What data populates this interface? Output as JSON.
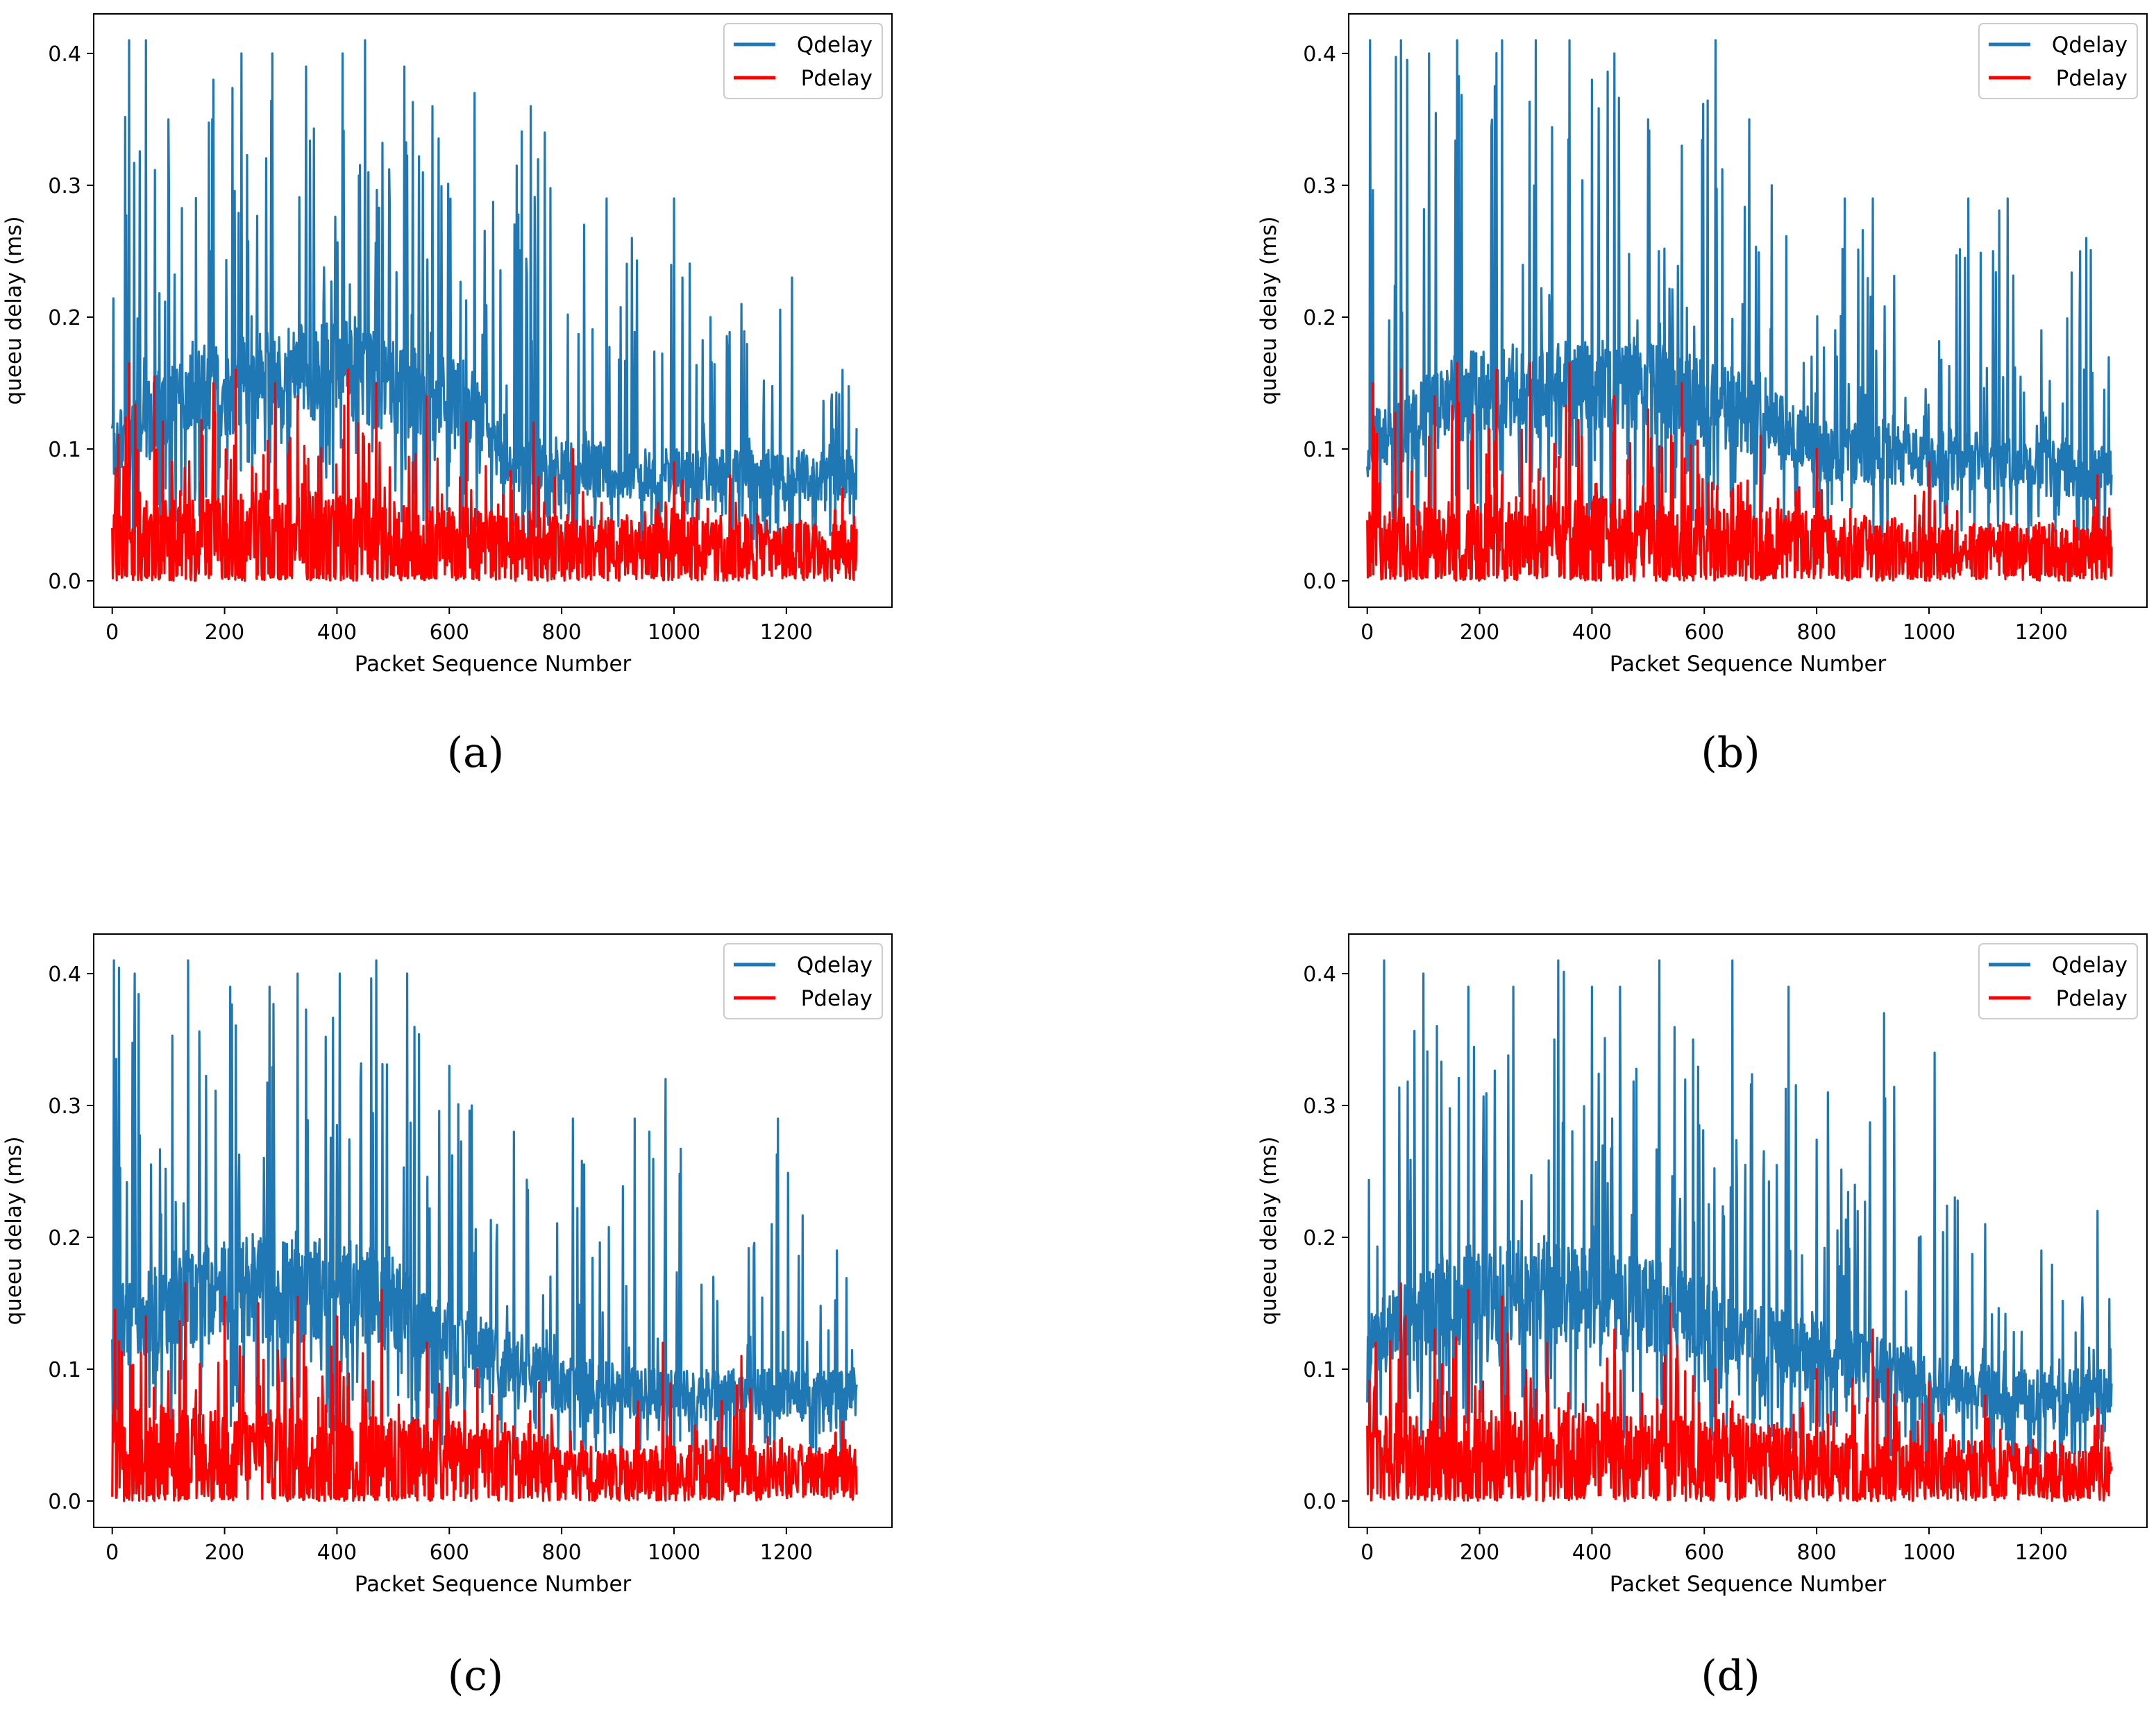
{
  "figure": {
    "series_names": [
      "Qdelay",
      "Pdelay"
    ],
    "colors": {
      "Qdelay": "#1f77b4",
      "Pdelay": "#ff0000",
      "axes": "#000000",
      "legend_border": "#cccccc"
    }
  },
  "chart_data": [
    {
      "type": "line",
      "caption": "(a)",
      "xlabel": "Packet Sequence Number",
      "ylabel": "queeu delay (ms)",
      "xlim": [
        -33,
        1388
      ],
      "ylim": [
        -0.02,
        0.43
      ],
      "xticks": [
        0,
        200,
        400,
        600,
        800,
        1000,
        1200
      ],
      "xtick_labels": [
        "0",
        "200",
        "400",
        "600",
        "800",
        "1000",
        "1200"
      ],
      "yticks": [
        0.0,
        0.1,
        0.2,
        0.3,
        0.4
      ],
      "ytick_labels": [
        "0.0",
        "0.1",
        "0.2",
        "0.3",
        "0.4"
      ],
      "legend": {
        "location": "top-right",
        "entries": [
          "Qdelay",
          "Pdelay"
        ]
      },
      "x_range": [
        0,
        1325
      ],
      "series": [
        {
          "name": "Qdelay",
          "color": "#1f77b4",
          "baseline": [
            [
              0,
              0.1
            ],
            [
              120,
              0.14
            ],
            [
              400,
              0.16
            ],
            [
              640,
              0.13
            ],
            [
              700,
              0.09
            ],
            [
              1000,
              0.08
            ],
            [
              1325,
              0.08
            ]
          ],
          "peaks": [
            [
              30,
              0.41
            ],
            [
              60,
              0.41
            ],
            [
              100,
              0.35
            ],
            [
              180,
              0.38
            ],
            [
              230,
              0.4
            ],
            [
              285,
              0.4
            ],
            [
              345,
              0.39
            ],
            [
              410,
              0.4
            ],
            [
              450,
              0.41
            ],
            [
              520,
              0.39
            ],
            [
              570,
              0.36
            ],
            [
              645,
              0.37
            ],
            [
              745,
              0.36
            ],
            [
              770,
              0.34
            ],
            [
              840,
              0.27
            ],
            [
              880,
              0.29
            ],
            [
              925,
              0.26
            ],
            [
              1000,
              0.29
            ],
            [
              1065,
              0.2
            ],
            [
              1120,
              0.21
            ],
            [
              1210,
              0.23
            ],
            [
              1300,
              0.16
            ]
          ],
          "points": []
        },
        {
          "name": "Pdelay",
          "color": "#ff0000",
          "baseline": [
            [
              0,
              0.04
            ],
            [
              300,
              0.05
            ],
            [
              600,
              0.04
            ],
            [
              800,
              0.035
            ],
            [
              1325,
              0.03
            ]
          ],
          "peaks": [
            [
              30,
              0.165
            ],
            [
              75,
              0.155
            ],
            [
              180,
              0.15
            ],
            [
              220,
              0.16
            ],
            [
              290,
              0.15
            ],
            [
              330,
              0.14
            ],
            [
              420,
              0.16
            ],
            [
              470,
              0.15
            ],
            [
              560,
              0.14
            ],
            [
              630,
              0.12
            ],
            [
              750,
              0.12
            ],
            [
              820,
              0.1
            ],
            [
              1000,
              0.09
            ],
            [
              1100,
              0.08
            ],
            [
              1300,
              0.07
            ]
          ],
          "points": []
        }
      ]
    },
    {
      "type": "line",
      "caption": "(b)",
      "xlabel": "Packet Sequence Number",
      "ylabel": "queeu delay (ms)",
      "xlim": [
        -33,
        1388
      ],
      "ylim": [
        -0.02,
        0.43
      ],
      "xticks": [
        0,
        200,
        400,
        600,
        800,
        1000,
        1200
      ],
      "xtick_labels": [
        "0",
        "200",
        "400",
        "600",
        "800",
        "1000",
        "1200"
      ],
      "yticks": [
        0.0,
        0.1,
        0.2,
        0.3,
        0.4
      ],
      "ytick_labels": [
        "0.0",
        "0.1",
        "0.2",
        "0.3",
        "0.4"
      ],
      "legend": {
        "location": "top-right",
        "entries": [
          "Qdelay",
          "Pdelay"
        ]
      },
      "x_range": [
        0,
        1325
      ],
      "series": [
        {
          "name": "Qdelay",
          "color": "#1f77b4",
          "baseline": [
            [
              0,
              0.1
            ],
            [
              150,
              0.14
            ],
            [
              450,
              0.15
            ],
            [
              650,
              0.13
            ],
            [
              800,
              0.1
            ],
            [
              1100,
              0.09
            ],
            [
              1325,
              0.08
            ]
          ],
          "peaks": [
            [
              5,
              0.41
            ],
            [
              60,
              0.41
            ],
            [
              110,
              0.4
            ],
            [
              160,
              0.41
            ],
            [
              240,
              0.41
            ],
            [
              300,
              0.41
            ],
            [
              360,
              0.41
            ],
            [
              400,
              0.38
            ],
            [
              440,
              0.4
            ],
            [
              500,
              0.35
            ],
            [
              560,
              0.33
            ],
            [
              620,
              0.41
            ],
            [
              680,
              0.35
            ],
            [
              720,
              0.3
            ],
            [
              850,
              0.29
            ],
            [
              900,
              0.29
            ],
            [
              1070,
              0.29
            ],
            [
              1140,
              0.29
            ],
            [
              1200,
              0.19
            ],
            [
              1280,
              0.26
            ]
          ],
          "points": []
        },
        {
          "name": "Pdelay",
          "color": "#ff0000",
          "baseline": [
            [
              0,
              0.04
            ],
            [
              400,
              0.045
            ],
            [
              700,
              0.04
            ],
            [
              1000,
              0.03
            ],
            [
              1325,
              0.03
            ]
          ],
          "peaks": [
            [
              10,
              0.15
            ],
            [
              60,
              0.16
            ],
            [
              120,
              0.14
            ],
            [
              160,
              0.165
            ],
            [
              230,
              0.16
            ],
            [
              290,
              0.165
            ],
            [
              360,
              0.165
            ],
            [
              440,
              0.14
            ],
            [
              500,
              0.13
            ],
            [
              560,
              0.15
            ],
            [
              700,
              0.11
            ],
            [
              800,
              0.1
            ],
            [
              1000,
              0.09
            ],
            [
              1300,
              0.08
            ]
          ],
          "points": []
        }
      ]
    },
    {
      "type": "line",
      "caption": "(c)",
      "xlabel": "Packet Sequence Number",
      "ylabel": "queeu delay (ms)",
      "xlim": [
        -33,
        1388
      ],
      "ylim": [
        -0.02,
        0.43
      ],
      "xticks": [
        0,
        200,
        400,
        600,
        800,
        1000,
        1200
      ],
      "xtick_labels": [
        "0",
        "200",
        "400",
        "600",
        "800",
        "1000",
        "1200"
      ],
      "yticks": [
        0.0,
        0.1,
        0.2,
        0.3,
        0.4
      ],
      "ytick_labels": [
        "0.0",
        "0.1",
        "0.2",
        "0.3",
        "0.4"
      ],
      "legend": {
        "location": "top-right",
        "entries": [
          "Qdelay",
          "Pdelay"
        ]
      },
      "x_range": [
        0,
        1325
      ],
      "series": [
        {
          "name": "Qdelay",
          "color": "#1f77b4",
          "baseline": [
            [
              0,
              0.13
            ],
            [
              200,
              0.16
            ],
            [
              460,
              0.16
            ],
            [
              600,
              0.12
            ],
            [
              800,
              0.09
            ],
            [
              1000,
              0.08
            ],
            [
              1325,
              0.08
            ]
          ],
          "peaks": [
            [
              3,
              0.41
            ],
            [
              40,
              0.4
            ],
            [
              135,
              0.41
            ],
            [
              210,
              0.39
            ],
            [
              280,
              0.39
            ],
            [
              330,
              0.4
            ],
            [
              405,
              0.4
            ],
            [
              470,
              0.41
            ],
            [
              525,
              0.4
            ],
            [
              600,
              0.33
            ],
            [
              640,
              0.3
            ],
            [
              715,
              0.28
            ],
            [
              820,
              0.29
            ],
            [
              930,
              0.29
            ],
            [
              985,
              0.32
            ],
            [
              1070,
              0.17
            ],
            [
              1185,
              0.29
            ],
            [
              1290,
              0.19
            ]
          ],
          "points": []
        },
        {
          "name": "Pdelay",
          "color": "#ff0000",
          "baseline": [
            [
              0,
              0.05
            ],
            [
              300,
              0.05
            ],
            [
              600,
              0.045
            ],
            [
              850,
              0.03
            ],
            [
              1325,
              0.03
            ]
          ],
          "peaks": [
            [
              5,
              0.145
            ],
            [
              60,
              0.14
            ],
            [
              130,
              0.165
            ],
            [
              200,
              0.155
            ],
            [
              260,
              0.15
            ],
            [
              330,
              0.155
            ],
            [
              400,
              0.14
            ],
            [
              480,
              0.16
            ],
            [
              560,
              0.12
            ],
            [
              650,
              0.1
            ],
            [
              760,
              0.09
            ],
            [
              980,
              0.12
            ],
            [
              1120,
              0.11
            ],
            [
              1300,
              0.06
            ]
          ],
          "points": []
        }
      ]
    },
    {
      "type": "line",
      "caption": "(d)",
      "xlabel": "Packet Sequence Number",
      "ylabel": "queeu delay (ms)",
      "xlim": [
        -33,
        1388
      ],
      "ylim": [
        -0.02,
        0.43
      ],
      "xticks": [
        0,
        200,
        400,
        600,
        800,
        1000,
        1200
      ],
      "xtick_labels": [
        "0",
        "200",
        "400",
        "600",
        "800",
        "1000",
        "1200"
      ],
      "yticks": [
        0.0,
        0.1,
        0.2,
        0.3,
        0.4
      ],
      "ytick_labels": [
        "0.0",
        "0.1",
        "0.2",
        "0.3",
        "0.4"
      ],
      "legend": {
        "location": "top-right",
        "entries": [
          "Qdelay",
          "Pdelay"
        ]
      },
      "x_range": [
        0,
        1325
      ],
      "series": [
        {
          "name": "Qdelay",
          "color": "#1f77b4",
          "baseline": [
            [
              0,
              0.12
            ],
            [
              200,
              0.16
            ],
            [
              500,
              0.15
            ],
            [
              700,
              0.12
            ],
            [
              900,
              0.1
            ],
            [
              1100,
              0.08
            ],
            [
              1325,
              0.08
            ]
          ],
          "peaks": [
            [
              30,
              0.41
            ],
            [
              100,
              0.4
            ],
            [
              180,
              0.39
            ],
            [
              260,
              0.39
            ],
            [
              340,
              0.41
            ],
            [
              400,
              0.39
            ],
            [
              450,
              0.39
            ],
            [
              520,
              0.41
            ],
            [
              580,
              0.35
            ],
            [
              650,
              0.41
            ],
            [
              750,
              0.39
            ],
            [
              820,
              0.31
            ],
            [
              920,
              0.37
            ],
            [
              1010,
              0.34
            ],
            [
              1100,
              0.21
            ],
            [
              1200,
              0.19
            ],
            [
              1300,
              0.22
            ]
          ],
          "points": []
        },
        {
          "name": "Pdelay",
          "color": "#ff0000",
          "baseline": [
            [
              0,
              0.045
            ],
            [
              300,
              0.05
            ],
            [
              600,
              0.045
            ],
            [
              900,
              0.035
            ],
            [
              1325,
              0.03
            ]
          ],
          "peaks": [
            [
              15,
              0.12
            ],
            [
              60,
              0.165
            ],
            [
              120,
              0.13
            ],
            [
              180,
              0.16
            ],
            [
              240,
              0.155
            ],
            [
              320,
              0.12
            ],
            [
              440,
              0.13
            ],
            [
              540,
              0.15
            ],
            [
              620,
              0.1
            ],
            [
              800,
              0.1
            ],
            [
              900,
              0.13
            ],
            [
              1000,
              0.09
            ],
            [
              1100,
              0.08
            ],
            [
              1300,
              0.07
            ]
          ],
          "points": []
        }
      ]
    }
  ]
}
